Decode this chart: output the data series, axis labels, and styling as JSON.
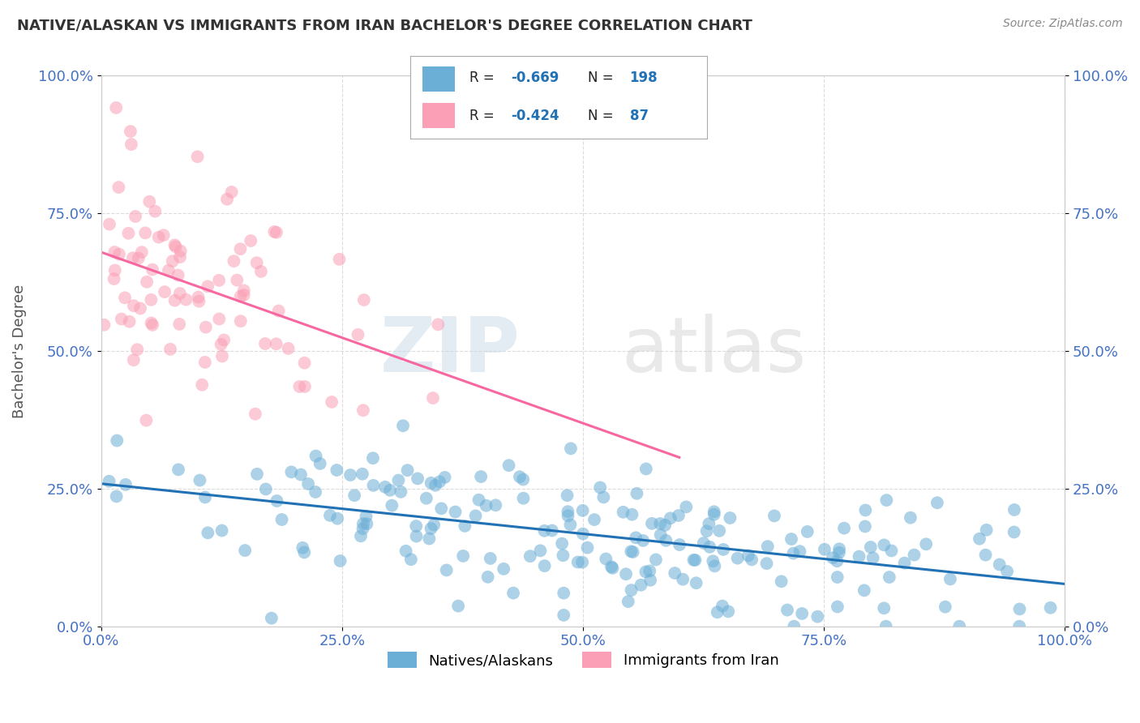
{
  "title": "NATIVE/ALASKAN VS IMMIGRANTS FROM IRAN BACHELOR'S DEGREE CORRELATION CHART",
  "source": "Source: ZipAtlas.com",
  "ylabel": "Bachelor's Degree",
  "xlim": [
    0,
    1
  ],
  "ylim": [
    0,
    1
  ],
  "xticks": [
    0.0,
    0.25,
    0.5,
    0.75,
    1.0
  ],
  "xticklabels": [
    "0.0%",
    "25.0%",
    "50.0%",
    "75.0%",
    "100.0%"
  ],
  "yticks": [
    0.0,
    0.25,
    0.5,
    0.75,
    1.0
  ],
  "yticklabels": [
    "0.0%",
    "25.0%",
    "50.0%",
    "75.0%",
    "100.0%"
  ],
  "blue_R": -0.669,
  "blue_N": 198,
  "pink_R": -0.424,
  "pink_N": 87,
  "blue_color": "#6baed6",
  "pink_color": "#fa9fb5",
  "blue_line_color": "#2171b5",
  "pink_line_color": "#f768a1",
  "watermark_zip": "ZIP",
  "watermark_atlas": "atlas",
  "background_color": "#ffffff",
  "grid_color": "#cccccc",
  "legend_label_blue": "Natives/Alaskans",
  "legend_label_pink": "Immigrants from Iran",
  "title_color": "#333333",
  "axis_label_color": "#555555",
  "tick_color": "#4472c4",
  "source_color": "#888888"
}
